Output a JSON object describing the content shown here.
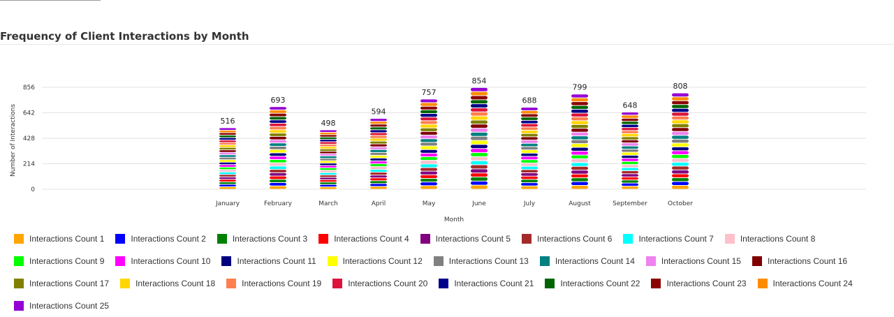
{
  "chart_data": {
    "type": "bar",
    "stacked": true,
    "title": "Frequency of Client Interactions by Month",
    "xlabel": "Month",
    "ylabel": "Number of Interactions",
    "categories": [
      "January",
      "February",
      "March",
      "April",
      "May",
      "June",
      "July",
      "August",
      "September",
      "October"
    ],
    "totals": [
      516,
      693,
      498,
      594,
      757,
      854,
      688,
      799,
      648,
      808
    ],
    "yticks": [
      0,
      214,
      428,
      642,
      856
    ],
    "ylim": [
      0,
      856
    ],
    "grid": true,
    "legend_position": "bottom",
    "series": [
      {
        "name": "Interactions Count 1",
        "color": "#FFA500"
      },
      {
        "name": "Interactions Count 2",
        "color": "#0000FF"
      },
      {
        "name": "Interactions Count 3",
        "color": "#008000"
      },
      {
        "name": "Interactions Count 4",
        "color": "#FF0000"
      },
      {
        "name": "Interactions Count 5",
        "color": "#800080"
      },
      {
        "name": "Interactions Count 6",
        "color": "#A52A2A"
      },
      {
        "name": "Interactions Count 7",
        "color": "#00FFFF"
      },
      {
        "name": "Interactions Count 8",
        "color": "#FFC0CB"
      },
      {
        "name": "Interactions Count 9",
        "color": "#00FF00"
      },
      {
        "name": "Interactions Count 10",
        "color": "#FF00FF"
      },
      {
        "name": "Interactions Count 11",
        "color": "#000080"
      },
      {
        "name": "Interactions Count 12",
        "color": "#FFFF00"
      },
      {
        "name": "Interactions Count 13",
        "color": "#808080"
      },
      {
        "name": "Interactions Count 14",
        "color": "#008080"
      },
      {
        "name": "Interactions Count 15",
        "color": "#EE82EE"
      },
      {
        "name": "Interactions Count 16",
        "color": "#800000"
      },
      {
        "name": "Interactions Count 17",
        "color": "#808000"
      },
      {
        "name": "Interactions Count 18",
        "color": "#FFD700"
      },
      {
        "name": "Interactions Count 19",
        "color": "#FF7F50"
      },
      {
        "name": "Interactions Count 20",
        "color": "#DC143C"
      },
      {
        "name": "Interactions Count 21",
        "color": "#00008B"
      },
      {
        "name": "Interactions Count 22",
        "color": "#006400"
      },
      {
        "name": "Interactions Count 23",
        "color": "#8B0000"
      },
      {
        "name": "Interactions Count 24",
        "color": "#FF8C00"
      },
      {
        "name": "Interactions Count 25",
        "color": "#9400D3"
      }
    ]
  }
}
